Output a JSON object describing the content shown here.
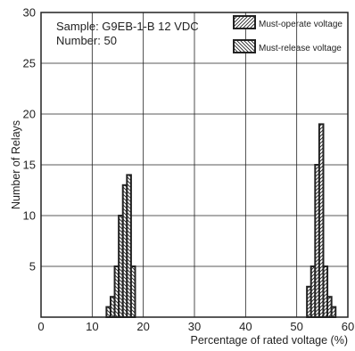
{
  "chart_data": {
    "type": "bar",
    "xlabel": "Percentage of rated voltage (%)",
    "ylabel": "Number of Relays",
    "xlim": [
      0,
      60
    ],
    "ylim": [
      0,
      30
    ],
    "x_ticks": [
      "0",
      "10",
      "20",
      "30",
      "40",
      "50",
      "60"
    ],
    "y_ticks": [
      "5",
      "10",
      "15",
      "20",
      "25",
      "30"
    ],
    "grid": true,
    "annotations": [
      "Sample: G9EB-1-B 12 VDC",
      "Number: 50"
    ],
    "legend_position": "top-right",
    "series": [
      {
        "name": "Must-operate voltage",
        "hatch": "forward-diagonal",
        "bins": [
          {
            "x0": 52.0,
            "x1": 52.8,
            "count": 3
          },
          {
            "x0": 52.8,
            "x1": 53.6,
            "count": 5
          },
          {
            "x0": 53.6,
            "x1": 54.4,
            "count": 15
          },
          {
            "x0": 54.4,
            "x1": 55.2,
            "count": 19
          },
          {
            "x0": 55.2,
            "x1": 56.0,
            "count": 5
          },
          {
            "x0": 56.0,
            "x1": 56.8,
            "count": 2
          },
          {
            "x0": 56.8,
            "x1": 57.6,
            "count": 1
          }
        ]
      },
      {
        "name": "Must-release voltage",
        "hatch": "back-diagonal",
        "bins": [
          {
            "x0": 12.8,
            "x1": 13.6,
            "count": 1
          },
          {
            "x0": 13.6,
            "x1": 14.4,
            "count": 2
          },
          {
            "x0": 14.4,
            "x1": 15.2,
            "count": 5
          },
          {
            "x0": 15.2,
            "x1": 16.0,
            "count": 10
          },
          {
            "x0": 16.0,
            "x1": 16.8,
            "count": 13
          },
          {
            "x0": 16.8,
            "x1": 17.6,
            "count": 14
          },
          {
            "x0": 17.6,
            "x1": 18.4,
            "count": 5
          }
        ]
      }
    ]
  },
  "colors": {
    "stroke": "#222222",
    "grid": "#222222",
    "fill": "#ffffff"
  }
}
